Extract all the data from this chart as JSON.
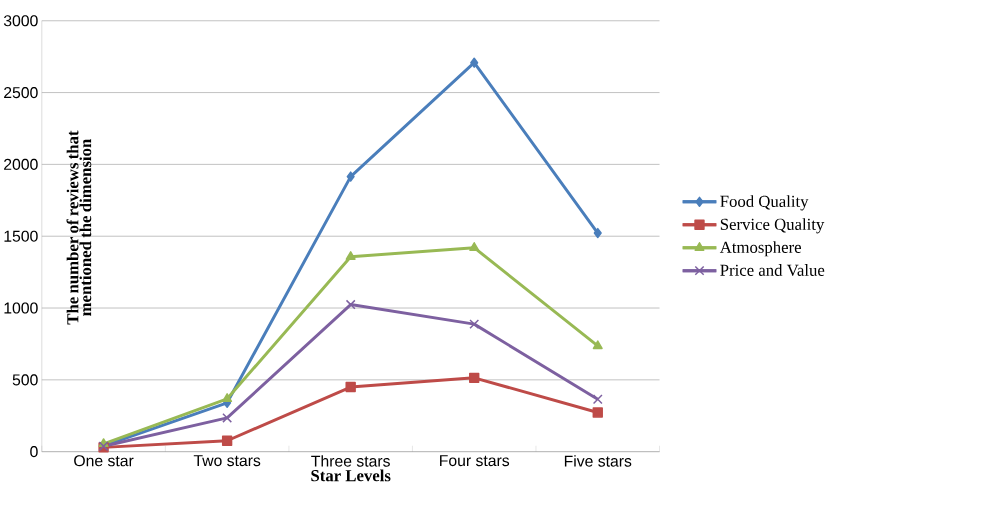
{
  "chart_data": {
    "type": "line",
    "xlabel": "Star Levels",
    "ylabel": "The number of reviews that mentioned the dimension",
    "categories": [
      "One star",
      "Two stars",
      "Three stars",
      "Four stars",
      "Five stars"
    ],
    "series": [
      {
        "name": "Food Quality",
        "color": "#4a7ebb",
        "marker": "diamond",
        "values": [
          40,
          340,
          1915,
          2708,
          1522
        ]
      },
      {
        "name": "Service Quality",
        "color": "#be4b48",
        "marker": "square",
        "values": [
          30,
          76,
          450,
          514,
          273
        ]
      },
      {
        "name": "Atmosphere",
        "color": "#98b954",
        "marker": "triangle",
        "values": [
          54,
          368,
          1357,
          1420,
          736
        ]
      },
      {
        "name": "Price and Value",
        "color": "#7d60a0",
        "marker": "cross",
        "values": [
          38,
          235,
          1024,
          888,
          365
        ]
      }
    ],
    "ylim": [
      0,
      3000
    ],
    "yticks": [
      0,
      500,
      1000,
      1500,
      2000,
      2500,
      3000
    ],
    "grid": "y",
    "legend": "right",
    "line_style": "solid"
  }
}
